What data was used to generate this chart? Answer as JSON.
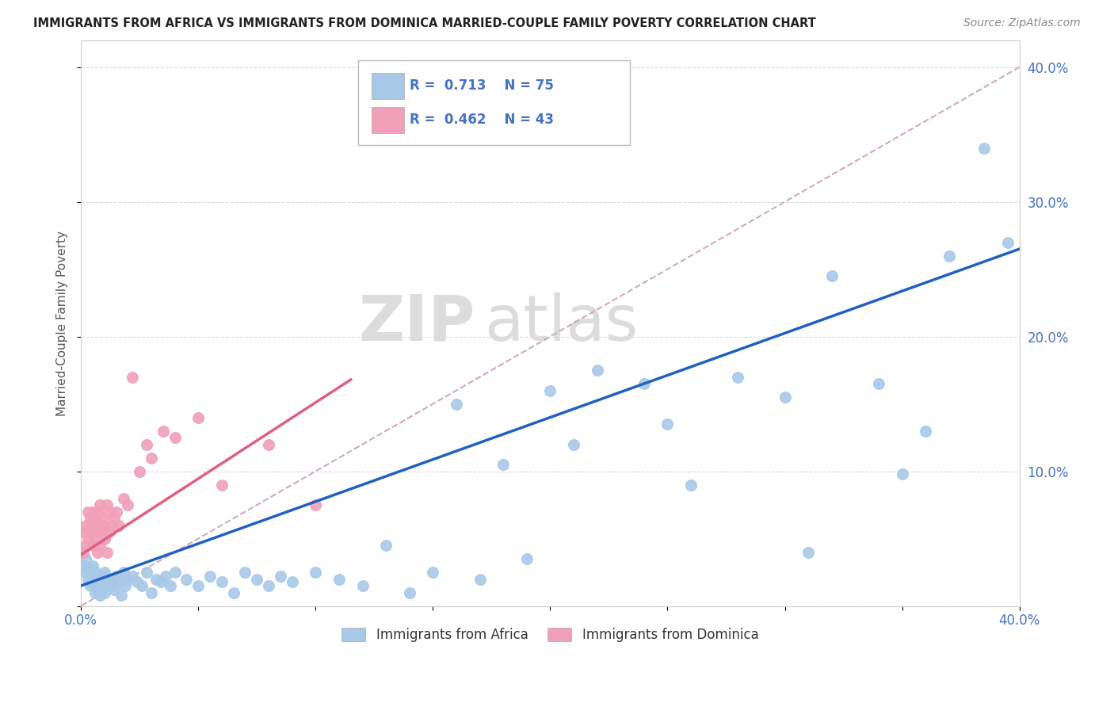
{
  "title": "IMMIGRANTS FROM AFRICA VS IMMIGRANTS FROM DOMINICA MARRIED-COUPLE FAMILY POVERTY CORRELATION CHART",
  "source": "Source: ZipAtlas.com",
  "ylabel": "Married-Couple Family Poverty",
  "xlim": [
    0.0,
    0.4
  ],
  "ylim": [
    0.0,
    0.42
  ],
  "africa_color": "#A8C8E8",
  "dominica_color": "#F0A0B8",
  "africa_line_color": "#2060C0",
  "dominica_line_color": "#E06080",
  "reference_line_color": "#C8A0C0",
  "R_africa": 0.713,
  "N_africa": 75,
  "R_dominica": 0.462,
  "N_dominica": 43,
  "watermark_zip": "ZIP",
  "watermark_atlas": "atlas",
  "background_color": "#FFFFFF",
  "legend_text_color": "#4472C4",
  "africa_x": [
    0.001,
    0.002,
    0.002,
    0.003,
    0.003,
    0.004,
    0.004,
    0.005,
    0.005,
    0.006,
    0.006,
    0.007,
    0.007,
    0.008,
    0.008,
    0.009,
    0.009,
    0.01,
    0.01,
    0.011,
    0.012,
    0.013,
    0.014,
    0.015,
    0.016,
    0.017,
    0.018,
    0.019,
    0.02,
    0.022,
    0.024,
    0.026,
    0.028,
    0.03,
    0.032,
    0.034,
    0.036,
    0.038,
    0.04,
    0.045,
    0.05,
    0.055,
    0.06,
    0.065,
    0.07,
    0.075,
    0.08,
    0.085,
    0.09,
    0.1,
    0.11,
    0.12,
    0.13,
    0.14,
    0.15,
    0.16,
    0.17,
    0.18,
    0.19,
    0.2,
    0.21,
    0.22,
    0.24,
    0.25,
    0.26,
    0.28,
    0.3,
    0.31,
    0.32,
    0.34,
    0.35,
    0.36,
    0.37,
    0.385,
    0.395
  ],
  "africa_y": [
    0.03,
    0.025,
    0.035,
    0.02,
    0.028,
    0.015,
    0.022,
    0.018,
    0.03,
    0.01,
    0.025,
    0.012,
    0.02,
    0.008,
    0.018,
    0.015,
    0.022,
    0.025,
    0.01,
    0.018,
    0.02,
    0.015,
    0.012,
    0.022,
    0.018,
    0.008,
    0.025,
    0.015,
    0.02,
    0.022,
    0.018,
    0.015,
    0.025,
    0.01,
    0.02,
    0.018,
    0.022,
    0.015,
    0.025,
    0.02,
    0.015,
    0.022,
    0.018,
    0.01,
    0.025,
    0.02,
    0.015,
    0.022,
    0.018,
    0.025,
    0.02,
    0.015,
    0.045,
    0.01,
    0.025,
    0.15,
    0.02,
    0.105,
    0.035,
    0.16,
    0.12,
    0.175,
    0.165,
    0.135,
    0.09,
    0.17,
    0.155,
    0.04,
    0.245,
    0.165,
    0.098,
    0.13,
    0.26,
    0.34,
    0.27
  ],
  "dominica_x": [
    0.001,
    0.001,
    0.002,
    0.002,
    0.003,
    0.003,
    0.004,
    0.004,
    0.005,
    0.005,
    0.005,
    0.006,
    0.006,
    0.007,
    0.007,
    0.007,
    0.008,
    0.008,
    0.008,
    0.009,
    0.009,
    0.01,
    0.01,
    0.011,
    0.011,
    0.012,
    0.012,
    0.013,
    0.014,
    0.015,
    0.016,
    0.018,
    0.02,
    0.022,
    0.025,
    0.028,
    0.03,
    0.035,
    0.04,
    0.05,
    0.06,
    0.08,
    0.1
  ],
  "dominica_y": [
    0.04,
    0.055,
    0.045,
    0.06,
    0.05,
    0.07,
    0.055,
    0.065,
    0.045,
    0.06,
    0.07,
    0.05,
    0.065,
    0.04,
    0.055,
    0.07,
    0.06,
    0.075,
    0.045,
    0.055,
    0.065,
    0.05,
    0.06,
    0.075,
    0.04,
    0.055,
    0.07,
    0.06,
    0.065,
    0.07,
    0.06,
    0.08,
    0.075,
    0.17,
    0.1,
    0.12,
    0.11,
    0.13,
    0.125,
    0.14,
    0.09,
    0.12,
    0.075
  ],
  "africa_trend_x": [
    0.0,
    0.4
  ],
  "africa_trend_y": [
    0.015,
    0.265
  ],
  "dominica_trend_x": [
    0.0,
    0.115
  ],
  "dominica_trend_y": [
    0.038,
    0.168
  ]
}
